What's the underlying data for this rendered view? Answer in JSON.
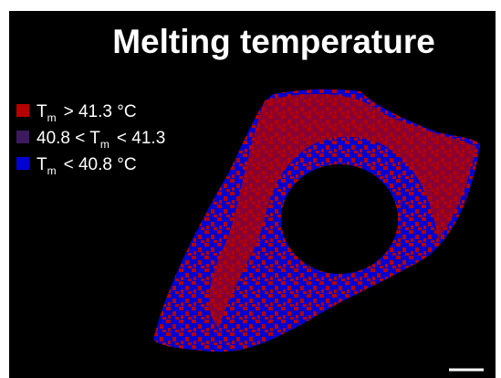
{
  "title": "Melting temperature",
  "legend": {
    "items": [
      {
        "color": "#b50000",
        "before": "T",
        "sub": "m",
        "after": "> 41.3 °C"
      },
      {
        "color": "#3b1a5e",
        "before": "40.8 < T",
        "sub": "m",
        "after": "< 41.3"
      },
      {
        "color": "#0000d0",
        "before": "T",
        "sub": "m",
        "after": "< 40.8 °C"
      }
    ]
  }
}
